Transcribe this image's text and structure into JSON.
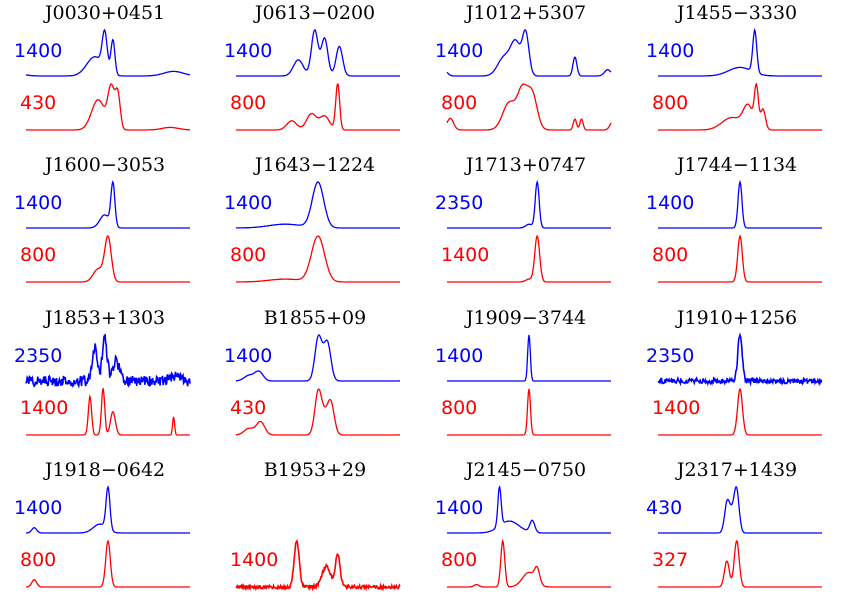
{
  "chart_data": [
    {
      "type": "line",
      "title": "J0030+0451",
      "series": [
        {
          "name": "1400",
          "color": "#0000ff"
        },
        {
          "name": "430",
          "color": "#ff0000"
        }
      ]
    },
    {
      "type": "line",
      "title": "J0613−0200",
      "series": [
        {
          "name": "1400",
          "color": "#0000ff"
        },
        {
          "name": "800",
          "color": "#ff0000"
        }
      ]
    },
    {
      "type": "line",
      "title": "J1012+5307",
      "series": [
        {
          "name": "1400",
          "color": "#0000ff"
        },
        {
          "name": "800",
          "color": "#ff0000"
        }
      ]
    },
    {
      "type": "line",
      "title": "J1455−3330",
      "series": [
        {
          "name": "1400",
          "color": "#0000ff"
        },
        {
          "name": "800",
          "color": "#ff0000"
        }
      ]
    },
    {
      "type": "line",
      "title": "J1600−3053",
      "series": [
        {
          "name": "1400",
          "color": "#0000ff"
        },
        {
          "name": "800",
          "color": "#ff0000"
        }
      ]
    },
    {
      "type": "line",
      "title": "J1643−1224",
      "series": [
        {
          "name": "1400",
          "color": "#0000ff"
        },
        {
          "name": "800",
          "color": "#ff0000"
        }
      ]
    },
    {
      "type": "line",
      "title": "J1713+0747",
      "series": [
        {
          "name": "2350",
          "color": "#0000ff"
        },
        {
          "name": "1400",
          "color": "#ff0000"
        }
      ]
    },
    {
      "type": "line",
      "title": "J1744−1134",
      "series": [
        {
          "name": "1400",
          "color": "#0000ff"
        },
        {
          "name": "800",
          "color": "#ff0000"
        }
      ]
    },
    {
      "type": "line",
      "title": "J1853+1303",
      "series": [
        {
          "name": "2350",
          "color": "#0000ff"
        },
        {
          "name": "1400",
          "color": "#ff0000"
        }
      ]
    },
    {
      "type": "line",
      "title": "B1855+09",
      "series": [
        {
          "name": "1400",
          "color": "#0000ff"
        },
        {
          "name": "430",
          "color": "#ff0000"
        }
      ]
    },
    {
      "type": "line",
      "title": "J1909−3744",
      "series": [
        {
          "name": "1400",
          "color": "#0000ff"
        },
        {
          "name": "800",
          "color": "#ff0000"
        }
      ]
    },
    {
      "type": "line",
      "title": "J1910+1256",
      "series": [
        {
          "name": "2350",
          "color": "#0000ff"
        },
        {
          "name": "1400",
          "color": "#ff0000"
        }
      ]
    },
    {
      "type": "line",
      "title": "J1918−0642",
      "series": [
        {
          "name": "1400",
          "color": "#0000ff"
        },
        {
          "name": "800",
          "color": "#ff0000"
        }
      ]
    },
    {
      "type": "line",
      "title": "B1953+29",
      "series": [
        {
          "name": "",
          "color": "#0000ff"
        },
        {
          "name": "1400",
          "color": "#ff0000"
        }
      ]
    },
    {
      "type": "line",
      "title": "J2145−0750",
      "series": [
        {
          "name": "1400",
          "color": "#0000ff"
        },
        {
          "name": "800",
          "color": "#ff0000"
        }
      ]
    },
    {
      "type": "line",
      "title": "J2317+1439",
      "series": [
        {
          "name": "430",
          "color": "#0000ff"
        },
        {
          "name": "327",
          "color": "#ff0000"
        }
      ]
    }
  ]
}
